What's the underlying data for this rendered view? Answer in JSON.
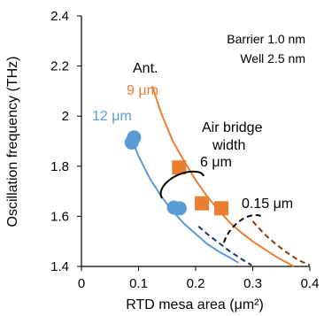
{
  "chart_data": {
    "type": "scatter",
    "xlabel": "RTD mesa area (μm²)",
    "ylabel": "Oscillation frequency (THz)",
    "xlim": [
      0,
      0.4
    ],
    "ylim": [
      1.4,
      2.4
    ],
    "xticks": [
      "0",
      "0.1",
      "0.2",
      "0.3",
      "0.4"
    ],
    "yticks": [
      "1.4",
      "1.6",
      "1.8",
      "2",
      "2.2",
      "2.4"
    ],
    "grid": false,
    "colors": {
      "blue": "#5b9bd5",
      "orange": "#ed7d31",
      "blue_dark": "#1f3864",
      "orange_dark": "#843c0c"
    },
    "info_box": {
      "line1": "Barrier 1.0 nm",
      "line2": "Well 2.5 nm"
    },
    "annotations": {
      "ant": "Ant.",
      "ant_9": "9 μm",
      "ant_12": "12 μm",
      "air_bridge_1": "Air bridge",
      "air_bridge_2": "width",
      "width_6": "6 μm",
      "width_015": "0.15 μm"
    },
    "series": [
      {
        "points": [
          [
            0.088,
            1.895
          ],
          [
            0.092,
            1.915
          ],
          [
            0.162,
            1.635
          ],
          [
            0.172,
            1.632
          ]
        ],
        "color": "#5b9bd5",
        "marker": "circle",
        "curve": [
          [
            0.085,
            1.925
          ],
          [
            0.1,
            1.84
          ],
          [
            0.12,
            1.75
          ],
          [
            0.14,
            1.68
          ],
          [
            0.16,
            1.62
          ],
          [
            0.18,
            1.57
          ],
          [
            0.2,
            1.53
          ],
          [
            0.22,
            1.49
          ],
          [
            0.24,
            1.46
          ],
          [
            0.26,
            1.435
          ],
          [
            0.275,
            1.415
          ]
        ]
      },
      {
        "points": [
          [
            0.171,
            1.795
          ],
          [
            0.211,
            1.652
          ],
          [
            0.245,
            1.632
          ]
        ],
        "color": "#ed7d31",
        "marker": "square",
        "curve": [
          [
            0.124,
            2.12
          ],
          [
            0.14,
            2.01
          ],
          [
            0.16,
            1.9
          ],
          [
            0.18,
            1.82
          ],
          [
            0.2,
            1.745
          ],
          [
            0.22,
            1.68
          ],
          [
            0.24,
            1.625
          ],
          [
            0.26,
            1.575
          ],
          [
            0.28,
            1.535
          ],
          [
            0.3,
            1.5
          ],
          [
            0.32,
            1.47
          ],
          [
            0.34,
            1.44
          ],
          [
            0.36,
            1.415
          ],
          [
            0.372,
            1.4
          ]
        ]
      },
      {
        "color": "#1f3864",
        "dashed": true,
        "curve": [
          [
            0.205,
            1.56
          ],
          [
            0.22,
            1.53
          ],
          [
            0.24,
            1.495
          ],
          [
            0.26,
            1.46
          ],
          [
            0.28,
            1.43
          ],
          [
            0.298,
            1.405
          ]
        ]
      },
      {
        "color": "#843c0c",
        "dashed": true,
        "curve": [
          [
            0.3,
            1.58
          ],
          [
            0.32,
            1.53
          ],
          [
            0.34,
            1.49
          ],
          [
            0.36,
            1.455
          ],
          [
            0.38,
            1.425
          ],
          [
            0.4,
            1.405
          ]
        ]
      }
    ]
  }
}
